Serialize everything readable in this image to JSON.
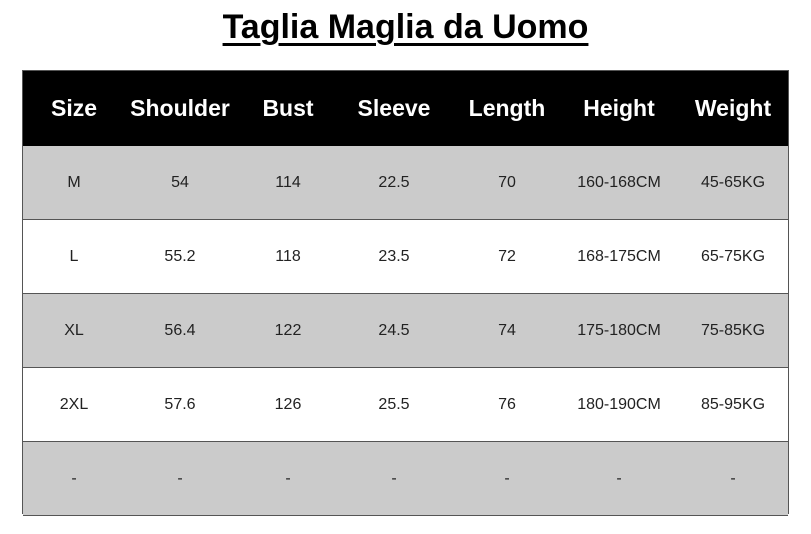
{
  "title": "Taglia Maglia da Uomo",
  "table": {
    "headers": [
      "Size",
      "Shoulder",
      "Bust",
      "Sleeve",
      "Length",
      "Height",
      "Weight"
    ],
    "rows": [
      [
        "M",
        "54",
        "114",
        "22.5",
        "70",
        "160-168CM",
        "45-65KG"
      ],
      [
        "L",
        "55.2",
        "118",
        "23.5",
        "72",
        "168-175CM",
        "65-75KG"
      ],
      [
        "XL",
        "56.4",
        "122",
        "24.5",
        "74",
        "175-180CM",
        "75-85KG"
      ],
      [
        "2XL",
        "57.6",
        "126",
        "25.5",
        "76",
        "180-190CM",
        "85-95KG"
      ],
      [
        "-",
        "-",
        "-",
        "-",
        "-",
        "-",
        "-"
      ]
    ]
  },
  "colors": {
    "header_bg": "#000000",
    "stripe_gray": "#cbcbcb"
  }
}
